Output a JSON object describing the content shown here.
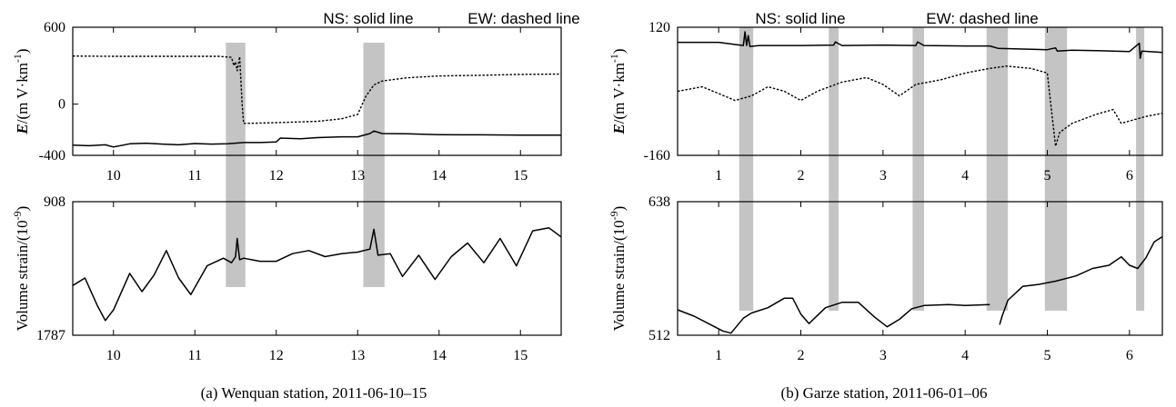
{
  "legend": {
    "ns": "NS: solid line",
    "ew": "EW: dashed line"
  },
  "colors": {
    "band": "#c4c4c4",
    "line": "#000000",
    "background": "#ffffff"
  },
  "chart_data": [
    {
      "id": "a-top",
      "type": "line",
      "title": "",
      "caption": "(a) Wenquan station, 2011-06-10–15",
      "ylabel": "E/(mV·km⁻¹)",
      "ylabel_main": "E",
      "ylabel_unit": "/(m V·km",
      "ylabel_sup": "-1",
      "ylabel_close": ")",
      "xlabel": "",
      "xlim": [
        9.5,
        15.5
      ],
      "ylim": [
        -400,
        600
      ],
      "xticks": [
        10,
        11,
        12,
        13,
        14,
        15
      ],
      "xtick_labels": [
        "10",
        "11",
        "12",
        "13",
        "14",
        "15"
      ],
      "yticks": [
        600,
        0,
        -400
      ],
      "ytick_labels": [
        "600",
        "0",
        "-400"
      ],
      "bands": [
        [
          11.38,
          11.62
        ],
        [
          13.07,
          13.33
        ]
      ],
      "series": [
        {
          "name": "NS",
          "style": "solid",
          "x": [
            9.5,
            9.7,
            9.9,
            10.0,
            10.2,
            10.4,
            10.6,
            10.8,
            11.0,
            11.2,
            11.4,
            11.6,
            11.8,
            12.0,
            12.05,
            12.3,
            12.5,
            12.8,
            13.0,
            13.15,
            13.2,
            13.3,
            13.6,
            14.0,
            14.5,
            15.0,
            15.5
          ],
          "y": [
            -320,
            -325,
            -318,
            -335,
            -310,
            -305,
            -312,
            -318,
            -308,
            -312,
            -310,
            -300,
            -300,
            -295,
            -265,
            -270,
            -262,
            -255,
            -255,
            -230,
            -210,
            -230,
            -232,
            -238,
            -240,
            -242,
            -242
          ]
        },
        {
          "name": "EW",
          "style": "dashed",
          "x": [
            9.5,
            10.0,
            10.5,
            11.0,
            11.3,
            11.45,
            11.48,
            11.5,
            11.52,
            11.55,
            11.58,
            11.6,
            11.65,
            12.0,
            12.5,
            12.8,
            13.0,
            13.1,
            13.2,
            13.3,
            13.6,
            14.0,
            14.5,
            15.0,
            15.5
          ],
          "y": [
            375,
            373,
            373,
            373,
            373,
            365,
            300,
            330,
            260,
            370,
            0,
            -150,
            -150,
            -145,
            -135,
            -115,
            -80,
            60,
            150,
            180,
            205,
            220,
            225,
            232,
            235
          ]
        }
      ]
    },
    {
      "id": "a-bottom",
      "type": "line",
      "title": "",
      "ylabel": "Volume strain/(10⁻⁹)",
      "ylabel_main": "Volume strain/(10",
      "ylabel_sup": "-9",
      "ylabel_close": ")",
      "xlabel": "",
      "xlim": [
        9.5,
        15.5
      ],
      "ylim": [
        1787,
        908
      ],
      "xticks": [
        10,
        11,
        12,
        13,
        14,
        15
      ],
      "xtick_labels": [
        "10",
        "11",
        "12",
        "13",
        "14",
        "15"
      ],
      "yticks": [
        908,
        1787
      ],
      "ytick_labels": [
        "908",
        "1787"
      ],
      "bands": [
        [
          11.38,
          11.62
        ],
        [
          13.07,
          13.33
        ]
      ],
      "series": [
        {
          "name": "strain",
          "style": "solid",
          "x": [
            9.5,
            9.65,
            9.8,
            9.9,
            10.0,
            10.2,
            10.35,
            10.5,
            10.65,
            10.8,
            10.95,
            11.15,
            11.35,
            11.45,
            11.5,
            11.52,
            11.55,
            11.6,
            11.8,
            12.0,
            12.2,
            12.4,
            12.6,
            12.8,
            13.0,
            13.15,
            13.2,
            13.25,
            13.4,
            13.55,
            13.75,
            13.95,
            14.15,
            14.35,
            14.55,
            14.75,
            14.95,
            15.15,
            15.35,
            15.5
          ],
          "y": [
            1460,
            1410,
            1590,
            1690,
            1620,
            1380,
            1500,
            1390,
            1230,
            1410,
            1520,
            1330,
            1280,
            1310,
            1270,
            1150,
            1290,
            1280,
            1300,
            1300,
            1250,
            1230,
            1270,
            1250,
            1240,
            1220,
            1090,
            1260,
            1250,
            1400,
            1260,
            1420,
            1270,
            1180,
            1310,
            1150,
            1330,
            1100,
            1080,
            1140
          ]
        }
      ]
    },
    {
      "id": "b-top",
      "type": "line",
      "title": "",
      "caption": "(b) Garze station, 2011-06-01–06",
      "ylabel": "E/(mV·km⁻¹)",
      "ylabel_main": "E",
      "ylabel_unit": "/(m V·km",
      "ylabel_sup": "-1",
      "ylabel_close": ")",
      "xlabel": "",
      "xlim": [
        0.5,
        6.4
      ],
      "ylim": [
        -160,
        120
      ],
      "xticks": [
        1,
        2,
        3,
        4,
        5,
        6
      ],
      "xtick_labels": [
        "1",
        "2",
        "3",
        "4",
        "5",
        "6"
      ],
      "yticks": [
        120,
        -160
      ],
      "ytick_labels": [
        "120",
        "-160"
      ],
      "bands": [
        [
          1.25,
          1.42
        ],
        [
          2.34,
          2.46
        ],
        [
          3.36,
          3.5
        ],
        [
          4.26,
          4.52
        ],
        [
          4.97,
          5.24
        ],
        [
          6.08,
          6.18
        ]
      ],
      "series": [
        {
          "name": "NS",
          "style": "solid",
          "x": [
            0.5,
            1.0,
            1.3,
            1.32,
            1.34,
            1.36,
            1.38,
            1.5,
            2.0,
            2.4,
            2.42,
            2.5,
            3.0,
            3.4,
            3.42,
            3.5,
            4.0,
            4.3,
            4.4,
            4.6,
            5.0,
            5.1,
            5.12,
            5.3,
            5.6,
            6.0,
            6.12,
            6.13,
            6.15,
            6.4
          ],
          "y": [
            87,
            87,
            80,
            110,
            80,
            102,
            78,
            80,
            80,
            81,
            88,
            80,
            81,
            80,
            88,
            80,
            79,
            79,
            74,
            73,
            71,
            75,
            68,
            70,
            69,
            67,
            85,
            52,
            68,
            65
          ]
        },
        {
          "name": "EW",
          "style": "dashed",
          "x": [
            0.5,
            0.8,
            1.0,
            1.2,
            1.4,
            1.6,
            1.8,
            2.0,
            2.2,
            2.5,
            2.8,
            3.0,
            3.2,
            3.4,
            3.7,
            4.0,
            4.3,
            4.5,
            4.8,
            5.0,
            5.05,
            5.1,
            5.15,
            5.3,
            5.6,
            5.8,
            5.9,
            6.0,
            6.2,
            6.4
          ],
          "y": [
            -20,
            -10,
            -25,
            -40,
            -30,
            -10,
            -20,
            -40,
            -20,
            0,
            10,
            -5,
            -30,
            -5,
            5,
            20,
            30,
            35,
            30,
            20,
            -60,
            -140,
            -110,
            -90,
            -70,
            -60,
            -90,
            -85,
            -75,
            -68
          ]
        }
      ]
    },
    {
      "id": "b-bottom",
      "type": "line",
      "title": "",
      "ylabel": "Volume strain/(10⁻⁹)",
      "ylabel_main": "Volume strain/(10",
      "ylabel_sup": "-9",
      "ylabel_close": ")",
      "xlabel": "",
      "xlim": [
        0.5,
        6.4
      ],
      "ylim": [
        512,
        638
      ],
      "xticks": [
        1,
        2,
        3,
        4,
        5,
        6
      ],
      "xtick_labels": [
        "1",
        "2",
        "3",
        "4",
        "5",
        "6"
      ],
      "yticks": [
        638,
        512
      ],
      "ytick_labels": [
        "638",
        "512"
      ],
      "bands": [
        [
          1.25,
          1.42
        ],
        [
          2.34,
          2.46
        ],
        [
          3.36,
          3.5
        ],
        [
          4.26,
          4.52
        ],
        [
          4.97,
          5.24
        ],
        [
          6.08,
          6.18
        ]
      ],
      "series": [
        {
          "name": "strain-part1",
          "style": "solid",
          "x": [
            0.5,
            0.7,
            0.9,
            1.05,
            1.15,
            1.3,
            1.4,
            1.6,
            1.8,
            1.9,
            2.0,
            2.1,
            2.3,
            2.5,
            2.7,
            2.9,
            3.05,
            3.2,
            3.35,
            3.5,
            3.8,
            4.0,
            4.3
          ],
          "y": [
            536,
            530,
            522,
            516,
            514,
            528,
            533,
            538,
            547,
            547,
            532,
            523,
            538,
            543,
            543,
            529,
            520,
            527,
            537,
            540,
            541,
            540,
            541
          ]
        },
        {
          "name": "strain-part2",
          "style": "solid",
          "x": [
            4.42,
            4.45,
            4.52,
            4.7,
            4.9,
            5.1,
            5.35,
            5.55,
            5.75,
            5.9,
            6.0,
            6.1,
            6.2,
            6.3,
            6.4
          ],
          "y": [
            522,
            530,
            545,
            558,
            560,
            563,
            568,
            575,
            578,
            586,
            578,
            575,
            585,
            600,
            605
          ]
        }
      ]
    }
  ]
}
